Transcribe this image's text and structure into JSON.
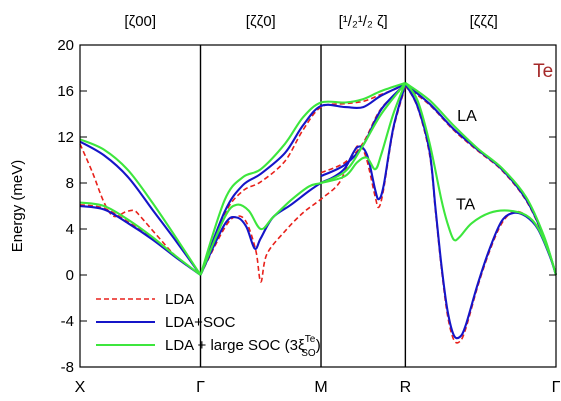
{
  "chart_data": {
    "type": "line",
    "title": "",
    "xlabel": "",
    "ylabel": "Energy (meV)",
    "ylim": [
      -8,
      20
    ],
    "yticks": [
      -8,
      -4,
      0,
      4,
      8,
      12,
      16,
      20
    ],
    "x_points": [
      {
        "label": "X",
        "x": 0
      },
      {
        "label": "Γ",
        "x": 1
      },
      {
        "label": "M",
        "x": 2
      },
      {
        "label": "R",
        "x": 2.7
      },
      {
        "label": "Γ",
        "x": 3.95
      }
    ],
    "segment_labels": [
      {
        "text": "[ζ00]",
        "x": 0.5
      },
      {
        "text": "[ζζ0]",
        "x": 1.5
      },
      {
        "text": "[¹/₂¹/₂ ζ]",
        "x": 2.35
      },
      {
        "text": "[ζζζ]",
        "x": 3.35
      }
    ],
    "annotations": [
      {
        "text": "Te",
        "x": 3.76,
        "y": 17.2,
        "color": "#a52a2a"
      },
      {
        "text": "LA",
        "x": 3.13,
        "y": 13.4,
        "color": "#000000"
      },
      {
        "text": "TA",
        "x": 3.12,
        "y": 5.7,
        "color": "#000000"
      }
    ],
    "legend": {
      "placement": "bottom-left",
      "entries": [
        {
          "label": "LDA",
          "style": "dashed",
          "color": "#e8211b"
        },
        {
          "label": "LDA+SOC",
          "style": "solid",
          "color": "#1515c8"
        },
        {
          "label": "LDA + large SOC (3ξ",
          "sup": "Te",
          "sub": "SO",
          "suffix": ")",
          "style": "solid",
          "color": "#3de63d"
        }
      ]
    },
    "series": [
      {
        "name": "LDA",
        "color": "#e8211b",
        "dash": true,
        "curves": [
          [
            [
              0,
              11.4
            ],
            [
              0.1,
              9
            ],
            [
              0.2,
              6.3
            ],
            [
              0.28,
              5.1
            ],
            [
              0.38,
              5.5
            ],
            [
              0.45,
              5.6
            ],
            [
              0.5,
              5.1
            ],
            [
              0.65,
              3.3
            ],
            [
              0.8,
              1.6
            ],
            [
              1,
              0
            ]
          ],
          [
            [
              0,
              6.1
            ],
            [
              0.2,
              5.8
            ],
            [
              0.4,
              4.6
            ],
            [
              0.6,
              3.2
            ],
            [
              0.8,
              1.5
            ],
            [
              1,
              0
            ]
          ],
          [
            [
              1,
              0
            ],
            [
              1.2,
              4.1
            ],
            [
              1.3,
              5.1
            ],
            [
              1.38,
              4.6
            ],
            [
              1.46,
              2.1
            ],
            [
              1.5,
              -0.6
            ],
            [
              1.55,
              1.8
            ],
            [
              1.7,
              3.8
            ],
            [
              1.85,
              5.4
            ],
            [
              2,
              6.6
            ],
            [
              2.15,
              8.0
            ],
            [
              2.25,
              10.3
            ],
            [
              2.32,
              11.3
            ],
            [
              2.38,
              10.0
            ],
            [
              2.45,
              6.8
            ],
            [
              2.48,
              5.9
            ],
            [
              2.52,
              7.5
            ],
            [
              2.6,
              12.6
            ],
            [
              2.7,
              16.4
            ]
          ],
          [
            [
              1,
              0
            ],
            [
              1.2,
              5.3
            ],
            [
              1.35,
              7.3
            ],
            [
              1.5,
              8.1
            ],
            [
              1.7,
              9.9
            ],
            [
              1.85,
              12.6
            ],
            [
              2,
              14.6
            ],
            [
              2.2,
              14.9
            ],
            [
              2.35,
              15.1
            ],
            [
              2.5,
              15.7
            ],
            [
              2.7,
              16.5
            ]
          ],
          [
            [
              2,
              8.9
            ],
            [
              2.2,
              9.8
            ],
            [
              2.35,
              11.5
            ],
            [
              2.5,
              14.5
            ],
            [
              2.7,
              16.4
            ]
          ],
          [
            [
              2.7,
              16.4
            ],
            [
              2.9,
              14.8
            ],
            [
              3.1,
              12.6
            ],
            [
              3.3,
              10.8
            ],
            [
              3.5,
              9.1
            ],
            [
              3.7,
              6.5
            ],
            [
              3.85,
              3.2
            ],
            [
              3.95,
              0
            ]
          ],
          [
            [
              2.7,
              16.5
            ],
            [
              2.8,
              14.6
            ],
            [
              2.9,
              10.5
            ],
            [
              2.95,
              5.5
            ],
            [
              3.0,
              0.5
            ],
            [
              3.05,
              -3.5
            ],
            [
              3.1,
              -5.6
            ],
            [
              3.15,
              -5.8
            ],
            [
              3.2,
              -4.7
            ],
            [
              3.3,
              -1.0
            ],
            [
              3.4,
              2.1
            ],
            [
              3.5,
              4.5
            ],
            [
              3.6,
              5.5
            ],
            [
              3.7,
              5.2
            ],
            [
              3.8,
              4.1
            ],
            [
              3.9,
              1.6
            ],
            [
              3.95,
              0
            ]
          ]
        ]
      },
      {
        "name": "LDA+SOC",
        "color": "#1515c8",
        "dash": false,
        "curves": [
          [
            [
              0,
              11.6
            ],
            [
              0.2,
              10.4
            ],
            [
              0.4,
              8.5
            ],
            [
              0.6,
              5.7
            ],
            [
              0.8,
              2.9
            ],
            [
              1,
              0
            ]
          ],
          [
            [
              0,
              6.0
            ],
            [
              0.2,
              5.7
            ],
            [
              0.4,
              4.5
            ],
            [
              0.6,
              3.1
            ],
            [
              0.8,
              1.5
            ],
            [
              1,
              0
            ]
          ],
          [
            [
              1,
              0
            ],
            [
              1.2,
              4.4
            ],
            [
              1.3,
              5.0
            ],
            [
              1.38,
              4.2
            ],
            [
              1.45,
              2.3
            ],
            [
              1.5,
              3.2
            ],
            [
              1.6,
              5.0
            ],
            [
              1.75,
              6.1
            ],
            [
              1.9,
              7.3
            ],
            [
              2,
              8.0
            ],
            [
              2.1,
              8.5
            ],
            [
              2.2,
              9.3
            ],
            [
              2.3,
              11.1
            ],
            [
              2.38,
              10.5
            ],
            [
              2.45,
              7.4
            ],
            [
              2.48,
              6.6
            ],
            [
              2.52,
              7.8
            ],
            [
              2.6,
              12.8
            ],
            [
              2.7,
              16.6
            ]
          ],
          [
            [
              1,
              0
            ],
            [
              1.2,
              5.5
            ],
            [
              1.35,
              7.8
            ],
            [
              1.5,
              8.8
            ],
            [
              1.7,
              10.6
            ],
            [
              1.85,
              13.0
            ],
            [
              2,
              14.7
            ],
            [
              2.2,
              14.6
            ],
            [
              2.35,
              14.6
            ],
            [
              2.5,
              15.6
            ],
            [
              2.7,
              16.6
            ]
          ],
          [
            [
              2,
              8.6
            ],
            [
              2.2,
              9.6
            ],
            [
              2.35,
              11.3
            ],
            [
              2.5,
              14.4
            ],
            [
              2.7,
              16.6
            ]
          ],
          [
            [
              2.7,
              16.6
            ],
            [
              2.9,
              14.9
            ],
            [
              3.1,
              12.7
            ],
            [
              3.3,
              10.9
            ],
            [
              3.5,
              9.2
            ],
            [
              3.7,
              6.6
            ],
            [
              3.85,
              3.3
            ],
            [
              3.95,
              0
            ]
          ],
          [
            [
              2.7,
              16.6
            ],
            [
              2.8,
              14.7
            ],
            [
              2.9,
              10.8
            ],
            [
              2.95,
              5.8
            ],
            [
              3.0,
              0.8
            ],
            [
              3.05,
              -3.1
            ],
            [
              3.1,
              -5.2
            ],
            [
              3.15,
              -5.4
            ],
            [
              3.2,
              -4.4
            ],
            [
              3.3,
              -0.8
            ],
            [
              3.4,
              2.3
            ],
            [
              3.5,
              4.7
            ],
            [
              3.6,
              5.4
            ],
            [
              3.7,
              5.1
            ],
            [
              3.8,
              4.0
            ],
            [
              3.9,
              1.6
            ],
            [
              3.95,
              0
            ]
          ]
        ]
      },
      {
        "name": "LDA + large SOC (3ξSO Te)",
        "color": "#3de63d",
        "dash": false,
        "curves": [
          [
            [
              0,
              11.8
            ],
            [
              0.2,
              10.9
            ],
            [
              0.4,
              9.1
            ],
            [
              0.6,
              6.3
            ],
            [
              0.8,
              3.2
            ],
            [
              1,
              0
            ]
          ],
          [
            [
              0,
              6.3
            ],
            [
              0.2,
              6.0
            ],
            [
              0.4,
              4.8
            ],
            [
              0.6,
              3.3
            ],
            [
              0.8,
              1.6
            ],
            [
              1,
              0
            ]
          ],
          [
            [
              1,
              0
            ],
            [
              1.2,
              5.0
            ],
            [
              1.3,
              6.1
            ],
            [
              1.4,
              5.6
            ],
            [
              1.5,
              4.0
            ],
            [
              1.6,
              5.0
            ],
            [
              1.75,
              6.5
            ],
            [
              1.9,
              7.7
            ],
            [
              2,
              8.0
            ],
            [
              2.2,
              8.6
            ],
            [
              2.3,
              9.8
            ],
            [
              2.38,
              10.2
            ],
            [
              2.45,
              9.2
            ],
            [
              2.5,
              10.5
            ],
            [
              2.6,
              14.0
            ],
            [
              2.7,
              16.7
            ]
          ],
          [
            [
              1,
              0
            ],
            [
              1.2,
              6.5
            ],
            [
              1.35,
              8.5
            ],
            [
              1.5,
              9.2
            ],
            [
              1.7,
              11.4
            ],
            [
              1.85,
              13.7
            ],
            [
              2,
              15.0
            ],
            [
              2.2,
              15.0
            ],
            [
              2.35,
              15.3
            ],
            [
              2.5,
              16.0
            ],
            [
              2.7,
              16.7
            ]
          ],
          [
            [
              2,
              8.0
            ],
            [
              2.2,
              9.0
            ],
            [
              2.35,
              11.3
            ],
            [
              2.5,
              14.0
            ],
            [
              2.7,
              16.7
            ]
          ],
          [
            [
              2.7,
              16.7
            ],
            [
              2.9,
              15.2
            ],
            [
              3.1,
              13.0
            ],
            [
              3.3,
              11.0
            ],
            [
              3.5,
              9.3
            ],
            [
              3.7,
              6.8
            ],
            [
              3.85,
              3.4
            ],
            [
              3.95,
              0
            ]
          ],
          [
            [
              2.7,
              16.7
            ],
            [
              2.8,
              15.2
            ],
            [
              2.9,
              11.5
            ],
            [
              3.0,
              6.5
            ],
            [
              3.05,
              4.5
            ],
            [
              3.1,
              3.1
            ],
            [
              3.15,
              3.3
            ],
            [
              3.25,
              4.5
            ],
            [
              3.4,
              5.4
            ],
            [
              3.55,
              5.6
            ],
            [
              3.7,
              5.2
            ],
            [
              3.8,
              4.1
            ],
            [
              3.9,
              1.7
            ],
            [
              3.95,
              0
            ]
          ]
        ]
      }
    ]
  }
}
